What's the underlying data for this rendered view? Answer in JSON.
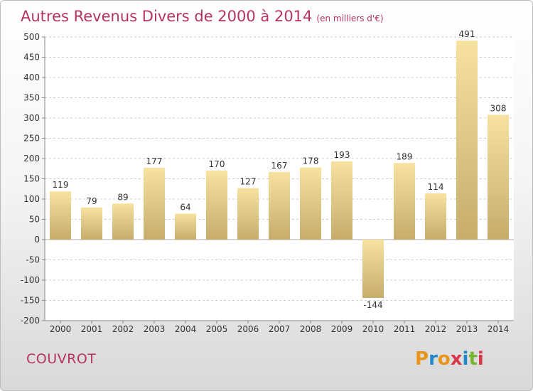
{
  "header": {
    "title": "Autres Revenus Divers de 2000 à 2014",
    "unit": "(en milliers d'€)"
  },
  "footer": {
    "commune": "COUVROT",
    "brand_letters": [
      "P",
      "r",
      "o",
      "x",
      "i",
      "t",
      "i"
    ]
  },
  "colors": {
    "title": "#b5335e",
    "bar_light": "#f7e2a0",
    "bar_dark": "#c7ac6a",
    "grid": "#cccccc",
    "axis_text": "#333333"
  },
  "chart_data": {
    "type": "bar",
    "title": "Autres Revenus Divers de 2000 à 2014",
    "xlabel": "",
    "ylabel": "",
    "ylim": [
      -200,
      500
    ],
    "yticks": [
      -200,
      -150,
      -100,
      -50,
      0,
      50,
      100,
      150,
      200,
      250,
      300,
      350,
      400,
      450,
      500
    ],
    "grid": true,
    "categories": [
      "2000",
      "2001",
      "2002",
      "2003",
      "2004",
      "2005",
      "2006",
      "2007",
      "2008",
      "2009",
      "2010",
      "2011",
      "2012",
      "2013",
      "2014"
    ],
    "values": [
      119,
      79,
      89,
      177,
      64,
      170,
      127,
      167,
      178,
      193,
      -144,
      189,
      114,
      491,
      308
    ]
  }
}
